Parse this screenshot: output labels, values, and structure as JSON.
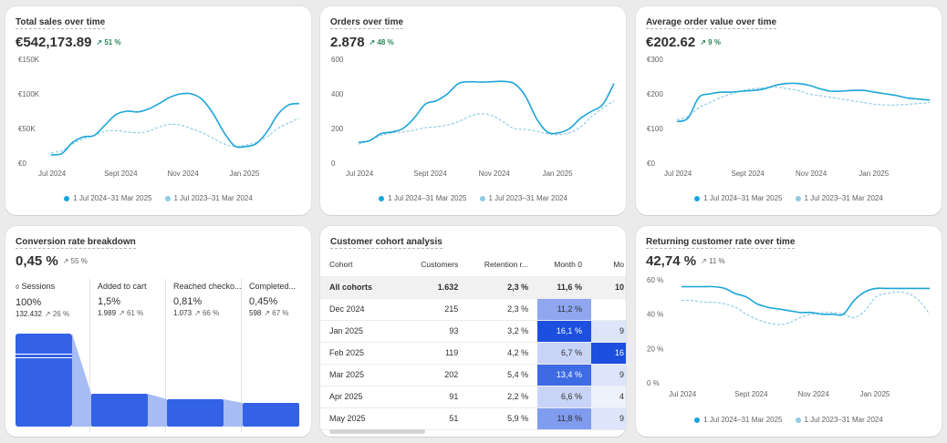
{
  "colors": {
    "primary": "#1ba5d8",
    "comparison": "#8ecbe6",
    "funnel": "#3462e6",
    "delta_up": "#29845a"
  },
  "legend": {
    "current": "1 Jul 2024–31 Mar 2025",
    "previous": "1 Jul 2023–31 Mar 2024"
  },
  "x_ticks": [
    "Jul 2024",
    "Sept 2024",
    "Nov 2024",
    "Jan 2025"
  ],
  "cards": {
    "total_sales": {
      "title": "Total sales over time",
      "value": "€542,173.89",
      "delta": "51 %"
    },
    "orders": {
      "title": "Orders over time",
      "value": "2.878",
      "delta": "48 %"
    },
    "aov": {
      "title": "Average order value over time",
      "value": "€202.62",
      "delta": "9 %"
    },
    "conversion": {
      "title": "Conversion rate breakdown",
      "value": "0,45 %",
      "delta": "55 %"
    },
    "cohort": {
      "title": "Customer cohort analysis"
    },
    "returning": {
      "title": "Returning customer rate over time",
      "value": "42,74 %",
      "delta": "11 %"
    }
  },
  "chart_data": [
    {
      "type": "line",
      "title": "Total sales over time",
      "y_ticks": [
        "€150K",
        "€100K",
        "€50K",
        "€0"
      ],
      "ylim": [
        0,
        150000
      ],
      "x_ticks": [
        "Jul 2024",
        "Sept 2024",
        "Nov 2024",
        "Jan 2025"
      ],
      "series": [
        {
          "name": "1 Jul 2024–31 Mar 2025",
          "values": [
            12000,
            14000,
            30000,
            38000,
            40000,
            55000,
            70000,
            75000,
            74000,
            78000,
            86000,
            95000,
            100000,
            100000,
            92000,
            72000,
            45000,
            25000,
            24000,
            28000,
            45000,
            70000,
            84000,
            86000
          ]
        },
        {
          "name": "1 Jul 2023–31 Mar 2024",
          "values": [
            15000,
            18000,
            28000,
            35000,
            40000,
            46000,
            47000,
            45000,
            44000,
            46000,
            52000,
            56000,
            55000,
            50000,
            44000,
            36000,
            28000,
            24000,
            26000,
            30000,
            38000,
            50000,
            58000,
            65000
          ]
        }
      ]
    },
    {
      "type": "line",
      "title": "Orders over time",
      "y_ticks": [
        "600",
        "400",
        "200",
        "0"
      ],
      "ylim": [
        0,
        600
      ],
      "x_ticks": [
        "Jul 2024",
        "Sept 2024",
        "Nov 2024",
        "Jan 2025"
      ],
      "series": [
        {
          "name": "1 Jul 2024–31 Mar 2025",
          "values": [
            120,
            130,
            170,
            180,
            200,
            260,
            340,
            360,
            400,
            460,
            470,
            468,
            470,
            472,
            460,
            390,
            260,
            180,
            175,
            200,
            260,
            300,
            340,
            460
          ]
        },
        {
          "name": "1 Jul 2023–31 Mar 2024",
          "values": [
            110,
            130,
            160,
            175,
            180,
            190,
            205,
            210,
            220,
            240,
            270,
            285,
            275,
            240,
            200,
            195,
            185,
            170,
            165,
            175,
            210,
            270,
            320,
            360
          ]
        }
      ]
    },
    {
      "type": "line",
      "title": "Average order value over time",
      "y_ticks": [
        "€300",
        "€200",
        "€100",
        "€0"
      ],
      "ylim": [
        0,
        300
      ],
      "x_ticks": [
        "Jul 2024",
        "Sept 2024",
        "Nov 2024",
        "Jan 2025"
      ],
      "series": [
        {
          "name": "1 Jul 2024–31 Mar 2025",
          "values": [
            120,
            130,
            190,
            200,
            205,
            205,
            208,
            210,
            215,
            225,
            230,
            230,
            225,
            215,
            208,
            208,
            210,
            210,
            205,
            200,
            195,
            188,
            185,
            182
          ]
        },
        {
          "name": "1 Jul 2023–31 Mar 2024",
          "values": [
            125,
            135,
            160,
            175,
            190,
            200,
            210,
            215,
            218,
            220,
            215,
            210,
            200,
            195,
            190,
            185,
            180,
            175,
            170,
            168,
            168,
            170,
            172,
            175
          ]
        }
      ]
    },
    {
      "type": "bar",
      "title": "Conversion rate breakdown",
      "categories": [
        "Sessions",
        "Added to cart",
        "Reached checkout",
        "Completed"
      ],
      "values": [
        100,
        1.5,
        0.81,
        0.45
      ],
      "steps": [
        {
          "label": "Sessions",
          "pct": "100%",
          "count": "132.432",
          "delta": "26 %"
        },
        {
          "label": "Added to cart",
          "pct": "1,5%",
          "count": "1.989",
          "delta": "61 %"
        },
        {
          "label": "Reached checko...",
          "pct": "0,81%",
          "count": "1.073",
          "delta": "66 %"
        },
        {
          "label": "Completed...",
          "pct": "0,45%",
          "count": "598",
          "delta": "67 %"
        }
      ]
    },
    {
      "type": "table",
      "title": "Customer cohort analysis",
      "columns": [
        "Cohort",
        "Customers",
        "Retention r...",
        "Month 0",
        "Mo"
      ],
      "rows": [
        [
          "All cohorts",
          "1.632",
          "2,3 %",
          "11,6 %",
          "10"
        ],
        [
          "Dec 2024",
          "215",
          "2,3 %",
          "11,2 %",
          ""
        ],
        [
          "Jan 2025",
          "93",
          "3,2 %",
          "16,1 %",
          "9"
        ],
        [
          "Feb 2025",
          "119",
          "4,2 %",
          "6,7 %",
          "16"
        ],
        [
          "Mar 2025",
          "202",
          "5,4 %",
          "13,4 %",
          "9"
        ],
        [
          "Apr 2025",
          "91",
          "2,2 %",
          "6,6 %",
          "4"
        ],
        [
          "May 2025",
          "51",
          "5,9 %",
          "11,8 %",
          "9"
        ]
      ],
      "month0_shade": [
        "#f1f1f1",
        "#8ea7f0",
        "#1c4fde",
        "#c8d4f7",
        "#3e6ae4",
        "#c8d4f7",
        "#7f9cee"
      ],
      "month1_shade": [
        "#f1f1f1",
        "#ffffff",
        "#dde5fa",
        "#1c4fde",
        "#dde5fa",
        "#eef2fc",
        "#dde5fa"
      ]
    },
    {
      "type": "line",
      "title": "Returning customer rate over time",
      "y_ticks": [
        "60 %",
        "40 %",
        "20 %",
        "0 %"
      ],
      "ylim": [
        0,
        60
      ],
      "x_ticks": [
        "Jul 2024",
        "Sept 2024",
        "Nov 2024",
        "Jan 2025"
      ],
      "series": [
        {
          "name": "1 Jul 2024–31 Mar 2025",
          "values": [
            56,
            56,
            56,
            56,
            55,
            52,
            50,
            46,
            44,
            43,
            42,
            41,
            41,
            40,
            40,
            40,
            48,
            53,
            55,
            55,
            55,
            55,
            55,
            55
          ]
        },
        {
          "name": "1 Jul 2023–31 Mar 2024",
          "values": [
            48,
            48,
            47,
            47,
            46,
            44,
            40,
            37,
            35,
            34,
            35,
            38,
            40,
            41,
            41,
            40,
            38,
            42,
            50,
            52,
            53,
            52,
            48,
            40
          ]
        }
      ]
    }
  ]
}
